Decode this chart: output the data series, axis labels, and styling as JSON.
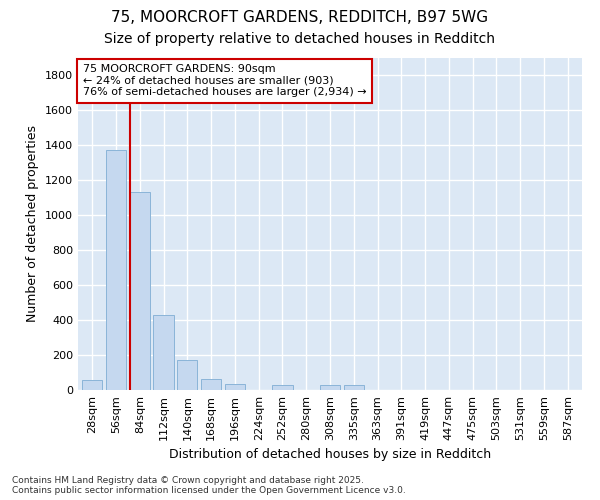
{
  "title_line1": "75, MOORCROFT GARDENS, REDDITCH, B97 5WG",
  "title_line2": "Size of property relative to detached houses in Redditch",
  "xlabel": "Distribution of detached houses by size in Redditch",
  "ylabel": "Number of detached properties",
  "bar_color": "#c5d8ef",
  "bar_edge_color": "#8ab4d8",
  "categories": [
    "28sqm",
    "56sqm",
    "84sqm",
    "112sqm",
    "140sqm",
    "168sqm",
    "196sqm",
    "224sqm",
    "252sqm",
    "280sqm",
    "308sqm",
    "335sqm",
    "363sqm",
    "391sqm",
    "419sqm",
    "447sqm",
    "475sqm",
    "503sqm",
    "531sqm",
    "559sqm",
    "587sqm"
  ],
  "values": [
    60,
    1370,
    1130,
    430,
    170,
    65,
    35,
    0,
    30,
    0,
    30,
    30,
    0,
    0,
    0,
    0,
    0,
    0,
    0,
    0,
    0
  ],
  "ylim": [
    0,
    1900
  ],
  "yticks": [
    0,
    200,
    400,
    600,
    800,
    1000,
    1200,
    1400,
    1600,
    1800
  ],
  "vline_color": "#cc0000",
  "vline_index": 2,
  "annotation_text": "75 MOORCROFT GARDENS: 90sqm\n← 24% of detached houses are smaller (903)\n76% of semi-detached houses are larger (2,934) →",
  "annotation_box_color": "#ffffff",
  "annotation_box_edge": "#cc0000",
  "fig_bg_color": "#ffffff",
  "plot_bg_color": "#dce8f5",
  "footnote": "Contains HM Land Registry data © Crown copyright and database right 2025.\nContains public sector information licensed under the Open Government Licence v3.0.",
  "title_fontsize": 11,
  "subtitle_fontsize": 10,
  "axis_label_fontsize": 9,
  "tick_fontsize": 8,
  "annotation_fontsize": 8,
  "footnote_fontsize": 6.5
}
